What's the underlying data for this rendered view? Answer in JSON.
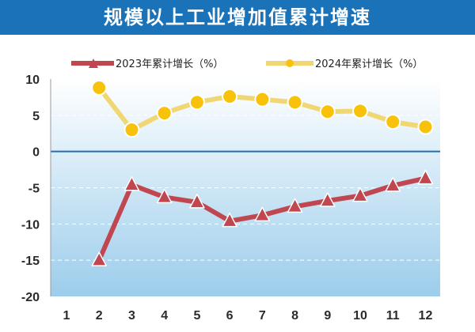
{
  "title": "规模以上工业增加值累计增速",
  "colors": {
    "banner": "#1a73b8",
    "series_2023": "#c0474f",
    "series_2023_line": "#c0474f",
    "series_2024_line": "#f0d774",
    "series_2024_marker": "#f8c20a",
    "zero_line": "#1f6fb5",
    "plot_top": "#ffffff",
    "plot_bottom": "#9ccdeb"
  },
  "chart_data": {
    "type": "line",
    "categories": [
      "1",
      "2",
      "3",
      "4",
      "5",
      "6",
      "7",
      "8",
      "9",
      "10",
      "11",
      "12"
    ],
    "ylim": [
      -20,
      10
    ],
    "yticks": [
      10,
      5,
      0,
      -5,
      -10,
      -15,
      -20
    ],
    "grid": "dashed horizontal",
    "legend_position": "top",
    "series": [
      {
        "name": "2023年累计增长（%）",
        "marker": "triangle",
        "values": [
          null,
          -15.0,
          -4.6,
          -6.3,
          -7.0,
          -9.6,
          -8.8,
          -7.6,
          -6.8,
          -6.1,
          -4.7,
          -3.7
        ]
      },
      {
        "name": "2024年累计增长（%）",
        "marker": "circle",
        "values": [
          null,
          8.8,
          3.0,
          5.3,
          6.8,
          7.6,
          7.2,
          6.8,
          5.5,
          5.6,
          4.1,
          3.4
        ]
      }
    ]
  }
}
